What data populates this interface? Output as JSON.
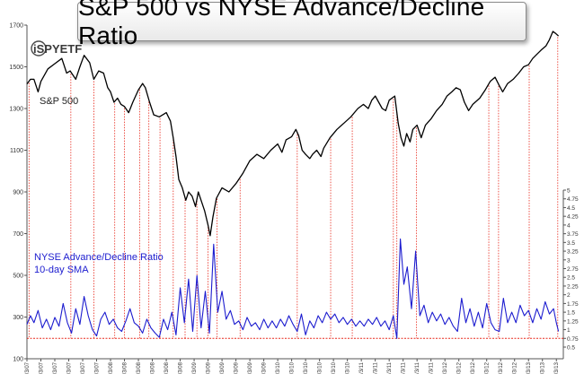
{
  "title": "S&P 500 vs NYSE Advance/Decline Ratio",
  "logo_text": "iSPYETF",
  "chart_data": {
    "type": "line",
    "title": "S&P 500 vs NYSE Advance/Decline Ratio",
    "grid": false,
    "left_axis": {
      "ylim": [
        100,
        1700
      ],
      "ticks": [
        100,
        300,
        500,
        700,
        900,
        1100,
        1300,
        1500,
        1700
      ]
    },
    "right_axis": {
      "ylim": [
        0.5,
        5
      ],
      "ticks": [
        0.5,
        0.75,
        1,
        1.25,
        1.5,
        1.75,
        2,
        2.25,
        2.5,
        2.75,
        3,
        3.25,
        3.5,
        3.75,
        4,
        4.25,
        4.5,
        4.75,
        5
      ]
    },
    "x_ticks": [
      "1/3/07",
      "3/3/07",
      "5/3/07",
      "7/3/07",
      "9/3/07",
      "11/3/07",
      "1/3/08",
      "3/3/08",
      "5/3/08",
      "7/3/08",
      "9/3/08",
      "11/3/08",
      "1/3/09",
      "3/3/09",
      "5/3/09",
      "7/3/09",
      "9/3/09",
      "11/3/09",
      "1/3/10",
      "3/3/10",
      "5/3/10",
      "7/3/10",
      "9/3/10",
      "11/3/10",
      "1/3/11",
      "3/3/11",
      "5/3/11",
      "7/3/11",
      "9/3/11",
      "11/3/11",
      "1/3/12",
      "3/3/12",
      "5/3/12",
      "7/3/12",
      "9/3/12",
      "11/3/12",
      "1/3/13",
      "3/3/13",
      "5/3/13"
    ],
    "threshold": {
      "value": 0.75,
      "color": "#e8291c"
    },
    "series": [
      {
        "name": "S&P 500",
        "axis": "left",
        "color": "#000000",
        "points": [
          [
            0,
            1418
          ],
          [
            0.5,
            1440
          ],
          [
            1,
            1440
          ],
          [
            1.6,
            1380
          ],
          [
            2,
            1430
          ],
          [
            3,
            1490
          ],
          [
            4,
            1515
          ],
          [
            5,
            1540
          ],
          [
            5.7,
            1470
          ],
          [
            6.2,
            1480
          ],
          [
            7,
            1440
          ],
          [
            7.6,
            1500
          ],
          [
            8.2,
            1555
          ],
          [
            9,
            1520
          ],
          [
            9.6,
            1440
          ],
          [
            10.3,
            1480
          ],
          [
            11,
            1470
          ],
          [
            11.6,
            1400
          ],
          [
            12,
            1380
          ],
          [
            12.5,
            1330
          ],
          [
            13,
            1350
          ],
          [
            13.5,
            1320
          ],
          [
            14,
            1310
          ],
          [
            14.6,
            1280
          ],
          [
            15.2,
            1330
          ],
          [
            16,
            1390
          ],
          [
            16.6,
            1420
          ],
          [
            17,
            1400
          ],
          [
            17.6,
            1330
          ],
          [
            18.2,
            1270
          ],
          [
            19,
            1260
          ],
          [
            20,
            1280
          ],
          [
            20.6,
            1240
          ],
          [
            21,
            1160
          ],
          [
            21.4,
            1070
          ],
          [
            21.8,
            960
          ],
          [
            22.3,
            920
          ],
          [
            22.8,
            860
          ],
          [
            23.2,
            900
          ],
          [
            23.7,
            880
          ],
          [
            24.2,
            830
          ],
          [
            24.6,
            900
          ],
          [
            25,
            860
          ],
          [
            25.5,
            810
          ],
          [
            26,
            740
          ],
          [
            26.3,
            690
          ],
          [
            26.7,
            780
          ],
          [
            27.2,
            870
          ],
          [
            28,
            920
          ],
          [
            29,
            900
          ],
          [
            30,
            940
          ],
          [
            31,
            990
          ],
          [
            32,
            1050
          ],
          [
            33,
            1080
          ],
          [
            34,
            1060
          ],
          [
            35,
            1100
          ],
          [
            36,
            1130
          ],
          [
            36.6,
            1090
          ],
          [
            37.2,
            1150
          ],
          [
            38,
            1165
          ],
          [
            38.6,
            1200
          ],
          [
            39,
            1170
          ],
          [
            39.5,
            1100
          ],
          [
            40,
            1080
          ],
          [
            40.6,
            1060
          ],
          [
            41,
            1080
          ],
          [
            41.6,
            1100
          ],
          [
            42.2,
            1070
          ],
          [
            42.6,
            1110
          ],
          [
            43.5,
            1160
          ],
          [
            44.5,
            1200
          ],
          [
            45.5,
            1230
          ],
          [
            46.5,
            1260
          ],
          [
            47.5,
            1300
          ],
          [
            48.3,
            1320
          ],
          [
            49,
            1300
          ],
          [
            49.5,
            1340
          ],
          [
            50,
            1360
          ],
          [
            50.5,
            1330
          ],
          [
            51,
            1300
          ],
          [
            51.5,
            1290
          ],
          [
            52,
            1340
          ],
          [
            52.8,
            1360
          ],
          [
            53.3,
            1230
          ],
          [
            53.7,
            1160
          ],
          [
            54.1,
            1120
          ],
          [
            54.5,
            1180
          ],
          [
            55,
            1140
          ],
          [
            55.4,
            1200
          ],
          [
            56,
            1220
          ],
          [
            56.6,
            1160
          ],
          [
            57.2,
            1220
          ],
          [
            58,
            1250
          ],
          [
            58.8,
            1290
          ],
          [
            59.6,
            1320
          ],
          [
            60.3,
            1360
          ],
          [
            61,
            1380
          ],
          [
            61.6,
            1400
          ],
          [
            62.2,
            1390
          ],
          [
            62.8,
            1330
          ],
          [
            63.4,
            1290
          ],
          [
            64,
            1320
          ],
          [
            65,
            1350
          ],
          [
            65.8,
            1390
          ],
          [
            66.5,
            1430
          ],
          [
            67.2,
            1450
          ],
          [
            67.8,
            1410
          ],
          [
            68.3,
            1380
          ],
          [
            69,
            1420
          ],
          [
            69.8,
            1440
          ],
          [
            70.6,
            1470
          ],
          [
            71.3,
            1500
          ],
          [
            72,
            1510
          ],
          [
            72.6,
            1540
          ],
          [
            73.2,
            1560
          ],
          [
            73.8,
            1580
          ],
          [
            74.5,
            1600
          ],
          [
            75,
            1630
          ],
          [
            75.5,
            1670
          ],
          [
            75.9,
            1660
          ],
          [
            76.3,
            1648
          ]
        ]
      },
      {
        "name": "NYSE Advance/Decline Ratio 10-day SMA",
        "axis": "right",
        "color": "#1c1ccf",
        "points": [
          [
            0,
            1.15
          ],
          [
            0.5,
            1.4
          ],
          [
            1,
            1.2
          ],
          [
            1.6,
            1.55
          ],
          [
            2.2,
            1.05
          ],
          [
            2.8,
            1.3
          ],
          [
            3.4,
            1.0
          ],
          [
            4,
            1.35
          ],
          [
            4.6,
            1.1
          ],
          [
            5.2,
            1.75
          ],
          [
            5.8,
            1.2
          ],
          [
            6.4,
            0.9
          ],
          [
            7,
            1.6
          ],
          [
            7.6,
            1.15
          ],
          [
            8.2,
            1.95
          ],
          [
            8.8,
            1.4
          ],
          [
            9.4,
            1.0
          ],
          [
            10,
            0.82
          ],
          [
            10.6,
            1.3
          ],
          [
            11.2,
            1.5
          ],
          [
            11.8,
            1.15
          ],
          [
            12.4,
            1.3
          ],
          [
            13,
            1.05
          ],
          [
            13.6,
            0.95
          ],
          [
            14.2,
            1.25
          ],
          [
            14.8,
            1.6
          ],
          [
            15.4,
            1.2
          ],
          [
            16,
            1.1
          ],
          [
            16.6,
            0.9
          ],
          [
            17.2,
            1.3
          ],
          [
            17.8,
            1.05
          ],
          [
            18.4,
            0.9
          ],
          [
            19,
            0.78
          ],
          [
            19.6,
            1.3
          ],
          [
            20.2,
            1.0
          ],
          [
            20.8,
            1.5
          ],
          [
            21.4,
            0.85
          ],
          [
            22,
            2.2
          ],
          [
            22.6,
            1.2
          ],
          [
            23.2,
            2.45
          ],
          [
            23.8,
            0.95
          ],
          [
            24.4,
            2.55
          ],
          [
            25,
            1.05
          ],
          [
            25.6,
            2.1
          ],
          [
            26.2,
            0.9
          ],
          [
            26.8,
            3.45
          ],
          [
            27.4,
            1.5
          ],
          [
            28,
            2.1
          ],
          [
            28.6,
            1.3
          ],
          [
            29.2,
            1.55
          ],
          [
            29.8,
            1.15
          ],
          [
            30.4,
            1.25
          ],
          [
            31,
            1.0
          ],
          [
            31.6,
            1.35
          ],
          [
            32.2,
            1.1
          ],
          [
            32.8,
            1.2
          ],
          [
            33.4,
            1.0
          ],
          [
            34,
            1.3
          ],
          [
            34.6,
            1.05
          ],
          [
            35.2,
            1.25
          ],
          [
            35.8,
            1.05
          ],
          [
            36.4,
            1.3
          ],
          [
            37,
            1.1
          ],
          [
            37.6,
            1.4
          ],
          [
            38.2,
            1.15
          ],
          [
            38.8,
            0.95
          ],
          [
            39.4,
            1.45
          ],
          [
            40,
            0.85
          ],
          [
            40.6,
            1.25
          ],
          [
            41.2,
            1.05
          ],
          [
            41.8,
            1.4
          ],
          [
            42.4,
            1.2
          ],
          [
            43,
            1.5
          ],
          [
            43.6,
            1.3
          ],
          [
            44.2,
            1.45
          ],
          [
            44.8,
            1.2
          ],
          [
            45.4,
            1.35
          ],
          [
            46,
            1.15
          ],
          [
            46.6,
            1.3
          ],
          [
            47.2,
            1.1
          ],
          [
            47.8,
            1.25
          ],
          [
            48.4,
            1.1
          ],
          [
            49,
            1.3
          ],
          [
            49.6,
            1.15
          ],
          [
            50.2,
            1.35
          ],
          [
            50.8,
            1.1
          ],
          [
            51.4,
            1.25
          ],
          [
            52,
            1.0
          ],
          [
            52.6,
            1.4
          ],
          [
            53.1,
            0.75
          ],
          [
            53.6,
            3.6
          ],
          [
            54.1,
            2.3
          ],
          [
            54.6,
            2.8
          ],
          [
            55.2,
            1.6
          ],
          [
            55.8,
            3.25
          ],
          [
            56.4,
            1.4
          ],
          [
            57,
            1.7
          ],
          [
            57.6,
            1.2
          ],
          [
            58.2,
            1.5
          ],
          [
            58.8,
            1.25
          ],
          [
            59.4,
            1.45
          ],
          [
            60,
            1.15
          ],
          [
            60.6,
            1.35
          ],
          [
            61.2,
            1.1
          ],
          [
            61.8,
            0.95
          ],
          [
            62.4,
            1.9
          ],
          [
            63,
            1.2
          ],
          [
            63.6,
            1.6
          ],
          [
            64.2,
            1.1
          ],
          [
            64.8,
            1.5
          ],
          [
            65.4,
            1.05
          ],
          [
            66,
            1.75
          ],
          [
            66.6,
            1.2
          ],
          [
            67.2,
            1.0
          ],
          [
            67.8,
            0.95
          ],
          [
            68.4,
            1.9
          ],
          [
            69,
            1.2
          ],
          [
            69.6,
            1.5
          ],
          [
            70.2,
            1.2
          ],
          [
            70.8,
            1.7
          ],
          [
            71.4,
            1.4
          ],
          [
            72,
            1.55
          ],
          [
            72.6,
            1.2
          ],
          [
            73.2,
            1.6
          ],
          [
            73.8,
            1.3
          ],
          [
            74.4,
            1.8
          ],
          [
            75,
            1.45
          ],
          [
            75.6,
            1.6
          ],
          [
            76,
            1.2
          ],
          [
            76.3,
            0.95
          ]
        ]
      }
    ],
    "vertical_markers": [
      0.3,
      6.3,
      9.6,
      12.6,
      14.0,
      16.2,
      17.5,
      19.1,
      21.0,
      22.7,
      24.4,
      26.0,
      27.3,
      30.6,
      38.8,
      43.6,
      46.7,
      52.6,
      53.1,
      55.9,
      66.3,
      67.7,
      72.1,
      76.2
    ]
  },
  "annotations": {
    "sp500_label": "S&P 500",
    "ad_label_line1": "NYSE Advance/Decline Ratio",
    "ad_label_line2": "10-day SMA"
  },
  "colors": {
    "sp500": "#000000",
    "ad_ratio": "#1c1ccf",
    "marker": "#e8291c",
    "axis": "#555555"
  }
}
